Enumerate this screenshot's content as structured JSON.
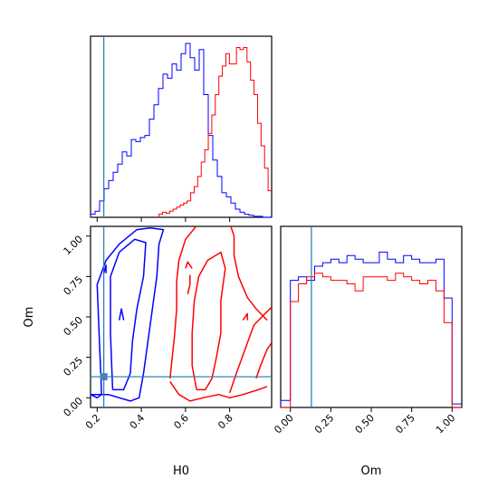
{
  "chart_data": {
    "type": "corner",
    "parameters": [
      "H0",
      "Om"
    ],
    "truth": {
      "H0": 0.23,
      "Om": 0.13
    },
    "colors": {
      "run_a": "#0000ff",
      "run_b": "#ff0000",
      "truth": "#1f77b4"
    },
    "panels": {
      "hist_H0": {
        "xlim": [
          0.17,
          0.99
        ],
        "bins": 40,
        "series": [
          {
            "color_key": "run_a",
            "values": [
              3,
              6,
              16,
              28,
              36,
              44,
              52,
              64,
              60,
              76,
              74,
              78,
              80,
              96,
              110,
              126,
              140,
              136,
              150,
              144,
              160,
              170,
              156,
              144,
              164,
              120,
              80,
              56,
              40,
              24,
              20,
              14,
              8,
              5,
              3,
              2,
              1,
              1,
              0,
              0
            ]
          },
          {
            "color_key": "run_b",
            "values": [
              0,
              0,
              0,
              0,
              0,
              0,
              0,
              0,
              0,
              0,
              0,
              0,
              0,
              0,
              0,
              0,
              0,
              0,
              0,
              0,
              0,
              0,
              0,
              1,
              2,
              3,
              4,
              6,
              8,
              10,
              12,
              14,
              16,
              18,
              20,
              22,
              24,
              28,
              30,
              32
            ]
          }
        ],
        "overlay_b_from_midrange": [
          3,
          5,
          4,
          6,
          8,
          10,
          12,
          14,
          16,
          24,
          30,
          40,
          54,
          66,
          82,
          100,
          120,
          138,
          148,
          160,
          150,
          150,
          166,
          164,
          166,
          152,
          134,
          120,
          92,
          70,
          48,
          26
        ]
      },
      "hist_Om": {
        "xlim": [
          -0.06,
          1.06
        ],
        "xticks": [
          "0.00",
          "0.25",
          "0.50",
          "0.75",
          "1.00"
        ],
        "bin_edges": [
          -0.06,
          0.0,
          0.05,
          0.1,
          0.15,
          0.2,
          0.25,
          0.3,
          0.35,
          0.4,
          0.45,
          0.5,
          0.55,
          0.6,
          0.65,
          0.7,
          0.75,
          0.8,
          0.85,
          0.9,
          0.95,
          1.0,
          1.06
        ],
        "series": [
          {
            "color_key": "run_a",
            "values": [
              0.04,
              0.72,
              0.74,
              0.72,
              0.8,
              0.82,
              0.84,
              0.82,
              0.86,
              0.84,
              0.82,
              0.82,
              0.88,
              0.84,
              0.82,
              0.86,
              0.84,
              0.82,
              0.82,
              0.84,
              0.62,
              0.02
            ]
          },
          {
            "color_key": "run_b",
            "values": [
              0.0,
              0.6,
              0.7,
              0.74,
              0.76,
              0.74,
              0.72,
              0.72,
              0.7,
              0.66,
              0.74,
              0.74,
              0.74,
              0.72,
              0.76,
              0.74,
              0.72,
              0.7,
              0.72,
              0.66,
              0.48,
              0.0
            ]
          }
        ]
      },
      "scatter_H0_Om": {
        "xlim": [
          0.17,
          0.99
        ],
        "ylim": [
          -0.06,
          1.06
        ],
        "xticks": [
          "0.2",
          "0.4",
          "0.6",
          "0.8"
        ],
        "yticks": [
          "0.00",
          "0.25",
          "0.50",
          "0.75",
          "1.00"
        ],
        "contours": [
          {
            "color_key": "run_a",
            "points": [
              [
                0.17,
                0.02
              ],
              [
                0.2,
                0.0
              ],
              [
                0.22,
                0.02
              ],
              [
                0.21,
                0.35
              ],
              [
                0.2,
                0.7
              ],
              [
                0.24,
                0.85
              ],
              [
                0.3,
                0.95
              ],
              [
                0.38,
                1.04
              ],
              [
                0.44,
                1.05
              ],
              [
                0.5,
                1.04
              ],
              [
                0.48,
                0.95
              ],
              [
                0.47,
                0.75
              ],
              [
                0.45,
                0.55
              ],
              [
                0.43,
                0.35
              ],
              [
                0.41,
                0.15
              ],
              [
                0.39,
                0.0
              ],
              [
                0.35,
                -0.02
              ],
              [
                0.3,
                0.0
              ],
              [
                0.25,
                0.02
              ],
              [
                0.17,
                0.02
              ]
            ]
          },
          {
            "color_key": "run_a",
            "points": [
              [
                0.27,
                0.05
              ],
              [
                0.26,
                0.4
              ],
              [
                0.26,
                0.75
              ],
              [
                0.3,
                0.9
              ],
              [
                0.37,
                0.98
              ],
              [
                0.42,
                0.96
              ],
              [
                0.41,
                0.75
              ],
              [
                0.38,
                0.55
              ],
              [
                0.36,
                0.35
              ],
              [
                0.35,
                0.15
              ],
              [
                0.32,
                0.05
              ],
              [
                0.27,
                0.05
              ]
            ]
          },
          {
            "color_key": "run_a",
            "points": [
              [
                0.3,
                0.48
              ],
              [
                0.31,
                0.55
              ],
              [
                0.32,
                0.48
              ]
            ]
          },
          {
            "color_key": "run_a",
            "points": [
              [
                0.23,
                0.77
              ],
              [
                0.24,
                0.82
              ],
              [
                0.24,
                0.77
              ]
            ]
          },
          {
            "color_key": "run_b",
            "points": [
              [
                0.53,
                0.1
              ],
              [
                0.57,
                0.02
              ],
              [
                0.62,
                -0.02
              ],
              [
                0.68,
                0.0
              ],
              [
                0.75,
                0.02
              ],
              [
                0.8,
                0.0
              ],
              [
                0.86,
                0.02
              ],
              [
                0.93,
                0.05
              ],
              [
                0.97,
                0.07
              ]
            ]
          },
          {
            "color_key": "run_b",
            "points": [
              [
                0.97,
                0.48
              ],
              [
                0.92,
                0.55
              ],
              [
                0.88,
                0.62
              ],
              [
                0.84,
                0.75
              ],
              [
                0.82,
                0.88
              ],
              [
                0.82,
                1.0
              ],
              [
                0.8,
                1.08
              ],
              [
                0.74,
                1.1
              ],
              [
                0.66,
                1.08
              ],
              [
                0.6,
                0.98
              ],
              [
                0.57,
                0.85
              ],
              [
                0.56,
                0.72
              ],
              [
                0.56,
                0.55
              ],
              [
                0.55,
                0.38
              ],
              [
                0.54,
                0.25
              ],
              [
                0.53,
                0.12
              ]
            ]
          },
          {
            "color_key": "run_b",
            "points": [
              [
                0.65,
                0.05
              ],
              [
                0.63,
                0.2
              ],
              [
                0.63,
                0.4
              ],
              [
                0.64,
                0.6
              ],
              [
                0.66,
                0.75
              ],
              [
                0.7,
                0.85
              ],
              [
                0.76,
                0.9
              ],
              [
                0.78,
                0.8
              ],
              [
                0.76,
                0.6
              ],
              [
                0.76,
                0.4
              ],
              [
                0.74,
                0.25
              ],
              [
                0.72,
                0.12
              ],
              [
                0.69,
                0.05
              ],
              [
                0.65,
                0.05
              ]
            ]
          },
          {
            "color_key": "run_b",
            "points": [
              [
                0.6,
                0.8
              ],
              [
                0.61,
                0.84
              ],
              [
                0.63,
                0.8
              ]
            ]
          },
          {
            "color_key": "run_b",
            "points": [
              [
                0.61,
                0.64
              ],
              [
                0.62,
                0.7
              ],
              [
                0.62,
                0.76
              ]
            ]
          },
          {
            "color_key": "run_b",
            "points": [
              [
                0.86,
                0.48
              ],
              [
                0.88,
                0.52
              ],
              [
                0.88,
                0.48
              ]
            ]
          },
          {
            "color_key": "run_b",
            "points": [
              [
                0.8,
                0.03
              ],
              [
                0.83,
                0.15
              ],
              [
                0.87,
                0.3
              ],
              [
                0.91,
                0.45
              ],
              [
                0.96,
                0.52
              ],
              [
                0.99,
                0.56
              ]
            ]
          },
          {
            "color_key": "run_b",
            "points": [
              [
                0.92,
                0.12
              ],
              [
                0.94,
                0.2
              ],
              [
                0.97,
                0.3
              ],
              [
                0.99,
                0.34
              ]
            ]
          }
        ]
      }
    },
    "xlabel_left": "H0",
    "xlabel_right": "Om",
    "ylabel": "Om"
  }
}
